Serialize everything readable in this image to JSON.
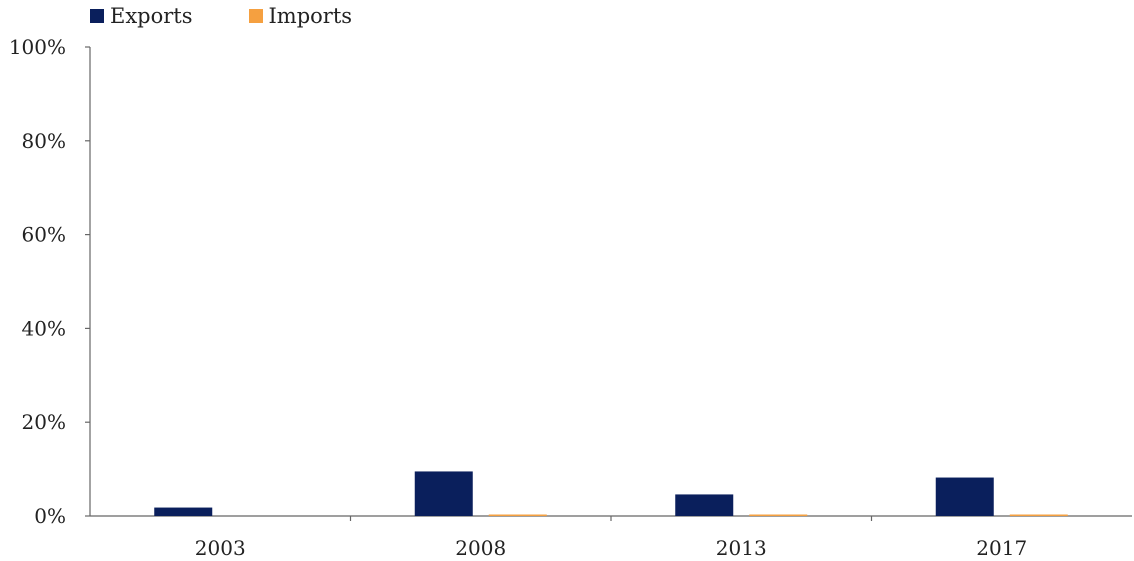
{
  "chart_data": {
    "type": "bar",
    "categories": [
      "2003",
      "2008",
      "2013",
      "2017"
    ],
    "series": [
      {
        "name": "Exports",
        "color": "#0a1f5c",
        "values": [
          1.8,
          9.5,
          4.6,
          8.2
        ]
      },
      {
        "name": "Imports",
        "color": "#f5a040",
        "values": [
          0.0,
          0.3,
          0.2,
          0.2
        ]
      }
    ],
    "y_ticks": [
      "0%",
      "20%",
      "40%",
      "60%",
      "80%",
      "100%"
    ],
    "ylim": [
      0,
      100
    ],
    "grid": false,
    "legend_position": "top-left"
  }
}
